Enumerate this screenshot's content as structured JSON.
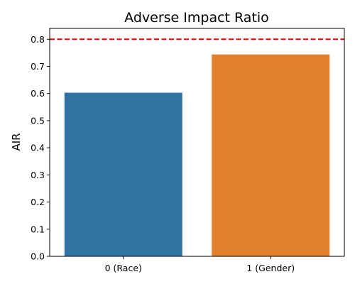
{
  "chart_data": {
    "type": "bar",
    "title": "Adverse Impact Ratio",
    "xlabel": "",
    "ylabel": "AIR",
    "categories": [
      "0 (Race)",
      "1 (Gender)"
    ],
    "values": [
      0.603,
      0.744
    ],
    "bar_colors": [
      "#3274a1",
      "#e1812c"
    ],
    "ylim": [
      0,
      0.84
    ],
    "yticks": [
      0.0,
      0.1,
      0.2,
      0.3,
      0.4,
      0.5,
      0.6,
      0.7,
      0.8
    ],
    "ytick_labels": [
      "0.0",
      "0.1",
      "0.2",
      "0.3",
      "0.4",
      "0.5",
      "0.6",
      "0.7",
      "0.8"
    ],
    "reference_line": {
      "value": 0.8,
      "color": "#e00000",
      "style": "dashed"
    },
    "grid": false,
    "legend": "none"
  }
}
